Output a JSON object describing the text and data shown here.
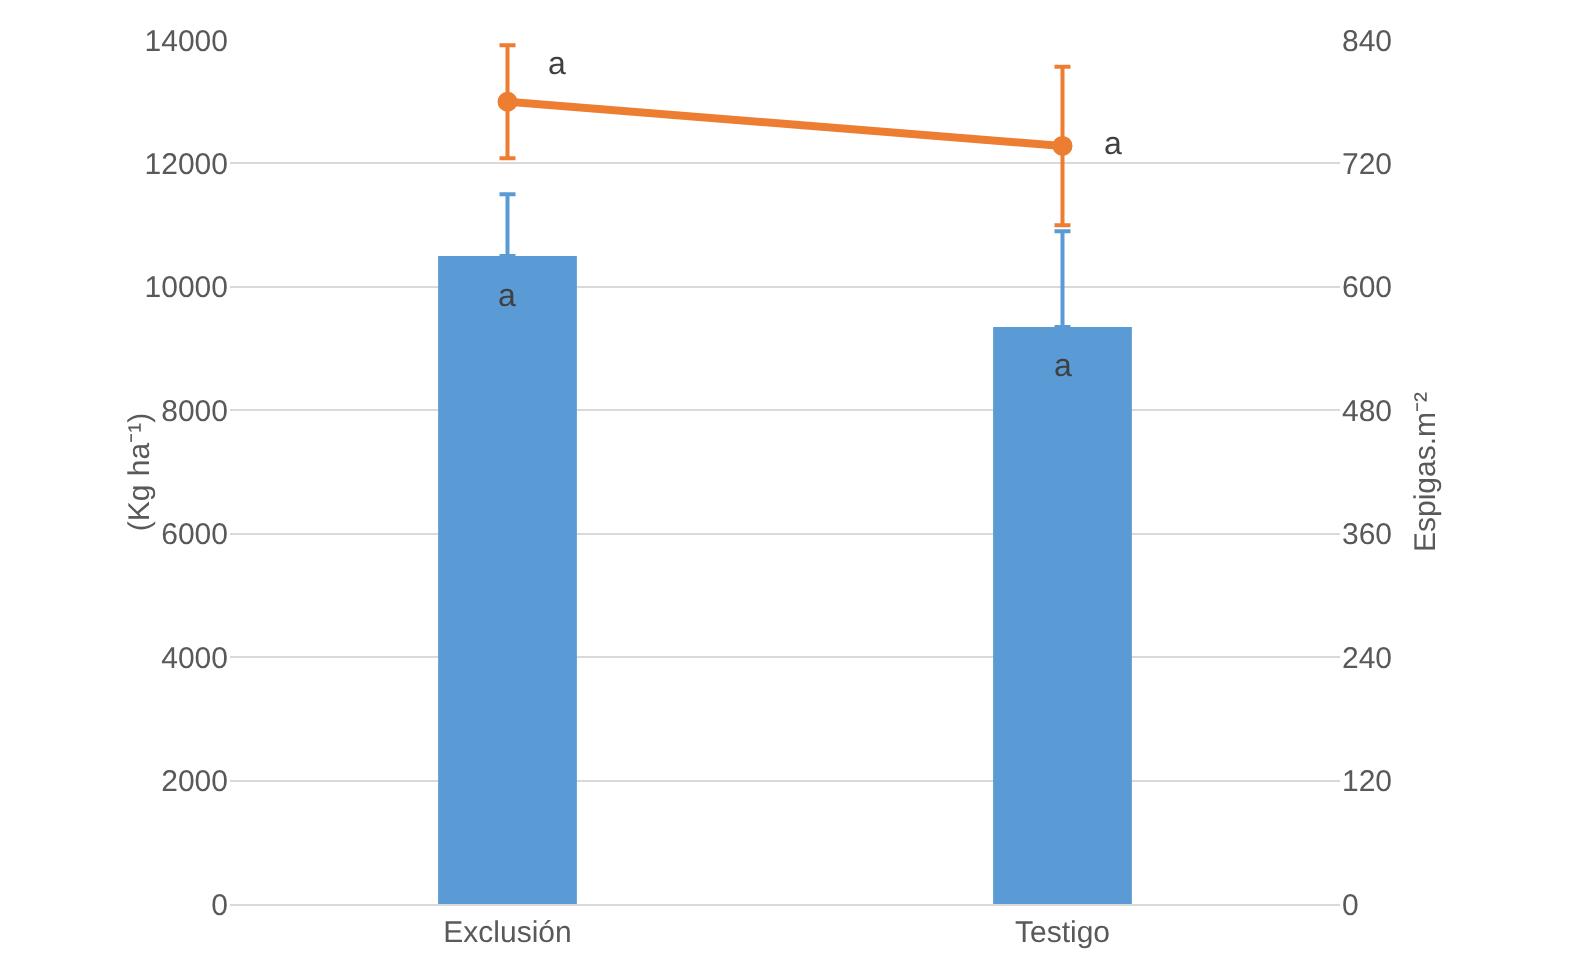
{
  "chart_data": {
    "type": "bar",
    "categories": [
      "Exclusión",
      "Testigo"
    ],
    "ylabel": "(Kg ha⁻¹)",
    "y2label": "Espigas.m⁻²",
    "series": [
      {
        "color": "#5b9bd5",
        "values": [
          10500,
          9350
        ],
        "errors": [
          [
            10500,
            11500
          ],
          [
            9350,
            10900
          ]
        ]
      },
      {
        "type": "line",
        "axis": "y2",
        "color": "#ed7d31",
        "values": [
          780,
          737
        ],
        "errors": [
          55,
          77
        ],
        "marker": "circle"
      }
    ],
    "ylim": [
      0,
      14000
    ],
    "yticks": [
      0,
      2000,
      4000,
      6000,
      8000,
      10000,
      12000,
      14000
    ],
    "y2lim": [
      0,
      840
    ],
    "y2ticks": [
      0,
      120,
      240,
      360,
      480,
      600,
      720,
      840
    ],
    "grid": "y",
    "legend": false,
    "annotations": [
      {
        "text": "a",
        "x": "Exclusión",
        "y": 10500
      },
      {
        "text": "a",
        "x": "Testigo",
        "y": 9350
      },
      {
        "text": "a",
        "x": "Exclusión",
        "y": 13000
      },
      {
        "text": "a",
        "x": "Testigo",
        "y": 12283
      }
    ]
  }
}
